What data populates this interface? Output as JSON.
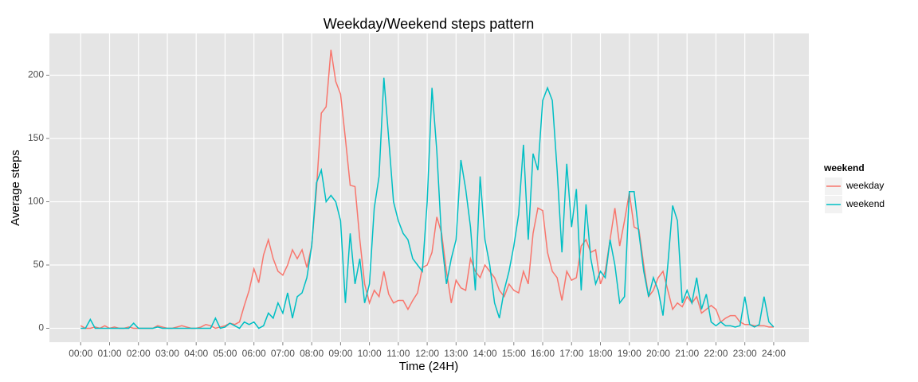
{
  "chart_data": {
    "type": "line",
    "title": "Weekday/Weekend steps pattern",
    "x_label": "Time (24H)",
    "y_label": "Average steps",
    "legend_title": "weekend",
    "legend_position": "right",
    "grid": true,
    "x": [
      0,
      10,
      20,
      30,
      40,
      50,
      60,
      70,
      80,
      90,
      100,
      110,
      120,
      130,
      140,
      150,
      160,
      170,
      180,
      190,
      200,
      210,
      220,
      230,
      240,
      250,
      260,
      270,
      280,
      290,
      300,
      310,
      320,
      330,
      340,
      350,
      360,
      370,
      380,
      390,
      400,
      410,
      420,
      430,
      440,
      450,
      460,
      470,
      480,
      490,
      500,
      510,
      520,
      530,
      540,
      550,
      560,
      570,
      580,
      590,
      600,
      610,
      620,
      630,
      640,
      650,
      660,
      670,
      680,
      690,
      700,
      710,
      720,
      730,
      740,
      750,
      760,
      770,
      780,
      790,
      800,
      810,
      820,
      830,
      840,
      850,
      860,
      870,
      880,
      890,
      900,
      910,
      920,
      930,
      940,
      950,
      960,
      970,
      980,
      990,
      1000,
      1010,
      1020,
      1030,
      1040,
      1050,
      1060,
      1070,
      1080,
      1090,
      1100,
      1110,
      1120,
      1130,
      1140,
      1150,
      1160,
      1170,
      1180,
      1190,
      1200,
      1210,
      1220,
      1230,
      1240,
      1250,
      1260,
      1270,
      1280,
      1290,
      1300,
      1310,
      1320,
      1330,
      1340,
      1350,
      1360,
      1370,
      1380,
      1390,
      1400,
      1410,
      1420,
      1430,
      1440
    ],
    "series": [
      {
        "name": "weekday",
        "color": "#F8766D",
        "values": [
          2,
          0,
          0,
          1,
          0,
          2,
          0,
          1,
          0,
          0,
          1,
          0,
          0,
          0,
          0,
          0,
          2,
          1,
          0,
          0,
          1,
          2,
          1,
          0,
          0,
          1,
          3,
          2,
          0,
          1,
          2,
          4,
          3,
          5,
          18,
          30,
          47,
          36,
          58,
          70,
          55,
          45,
          42,
          50,
          62,
          55,
          62,
          48,
          65,
          110,
          170,
          175,
          220,
          195,
          185,
          150,
          113,
          112,
          70,
          35,
          20,
          30,
          25,
          45,
          27,
          20,
          22,
          22,
          15,
          22,
          28,
          48,
          50,
          60,
          88,
          75,
          45,
          20,
          38,
          32,
          30,
          55,
          45,
          40,
          50,
          45,
          40,
          30,
          25,
          35,
          30,
          28,
          45,
          35,
          75,
          95,
          93,
          60,
          45,
          40,
          22,
          45,
          38,
          40,
          65,
          70,
          60,
          62,
          35,
          45,
          70,
          95,
          65,
          85,
          107,
          80,
          78,
          50,
          25,
          30,
          40,
          45,
          30,
          15,
          20,
          17,
          25,
          20,
          25,
          12,
          15,
          18,
          15,
          5,
          8,
          10,
          10,
          5,
          3,
          3,
          2,
          2,
          2,
          1,
          1
        ]
      },
      {
        "name": "weekend",
        "color": "#00BFC4",
        "values": [
          0,
          0,
          7,
          0,
          0,
          0,
          0,
          0,
          0,
          0,
          0,
          4,
          0,
          0,
          0,
          0,
          1,
          0,
          0,
          0,
          0,
          0,
          0,
          0,
          0,
          0,
          0,
          0,
          8,
          0,
          1,
          4,
          2,
          0,
          5,
          3,
          5,
          0,
          2,
          12,
          8,
          20,
          12,
          28,
          8,
          25,
          28,
          40,
          65,
          115,
          125,
          100,
          105,
          100,
          85,
          20,
          75,
          35,
          55,
          20,
          35,
          95,
          120,
          198,
          150,
          100,
          85,
          75,
          70,
          55,
          50,
          45,
          100,
          190,
          140,
          70,
          35,
          55,
          70,
          133,
          110,
          80,
          30,
          120,
          70,
          50,
          20,
          8,
          30,
          45,
          65,
          90,
          145,
          70,
          138,
          125,
          180,
          190,
          180,
          125,
          60,
          130,
          80,
          110,
          30,
          98,
          55,
          35,
          45,
          40,
          70,
          50,
          20,
          25,
          108,
          108,
          75,
          45,
          25,
          40,
          30,
          10,
          50,
          97,
          85,
          20,
          30,
          20,
          40,
          15,
          27,
          5,
          2,
          5,
          2,
          2,
          1,
          2,
          25,
          3,
          1,
          3,
          25,
          5,
          1
        ]
      }
    ],
    "xlim": [
      -65,
      1513
    ],
    "ylim": [
      -11,
      233
    ],
    "yticks": [
      0,
      50,
      100,
      150,
      200
    ],
    "xticks": [
      {
        "value": 0,
        "label": "00:00"
      },
      {
        "value": 60,
        "label": "01:00"
      },
      {
        "value": 120,
        "label": "02:00"
      },
      {
        "value": 180,
        "label": "03:00"
      },
      {
        "value": 240,
        "label": "04:00"
      },
      {
        "value": 300,
        "label": "05:00"
      },
      {
        "value": 360,
        "label": "06:00"
      },
      {
        "value": 420,
        "label": "07:00"
      },
      {
        "value": 480,
        "label": "08:00"
      },
      {
        "value": 540,
        "label": "09:00"
      },
      {
        "value": 600,
        "label": "10:00"
      },
      {
        "value": 660,
        "label": "11:00"
      },
      {
        "value": 720,
        "label": "12:00"
      },
      {
        "value": 780,
        "label": "13:00"
      },
      {
        "value": 840,
        "label": "14:00"
      },
      {
        "value": 900,
        "label": "15:00"
      },
      {
        "value": 960,
        "label": "16:00"
      },
      {
        "value": 1020,
        "label": "17:00"
      },
      {
        "value": 1080,
        "label": "18:00"
      },
      {
        "value": 1140,
        "label": "19:00"
      },
      {
        "value": 1200,
        "label": "20:00"
      },
      {
        "value": 1260,
        "label": "21:00"
      },
      {
        "value": 1320,
        "label": "22:00"
      },
      {
        "value": 1380,
        "label": "23:00"
      },
      {
        "value": 1440,
        "label": "24:00"
      }
    ]
  }
}
